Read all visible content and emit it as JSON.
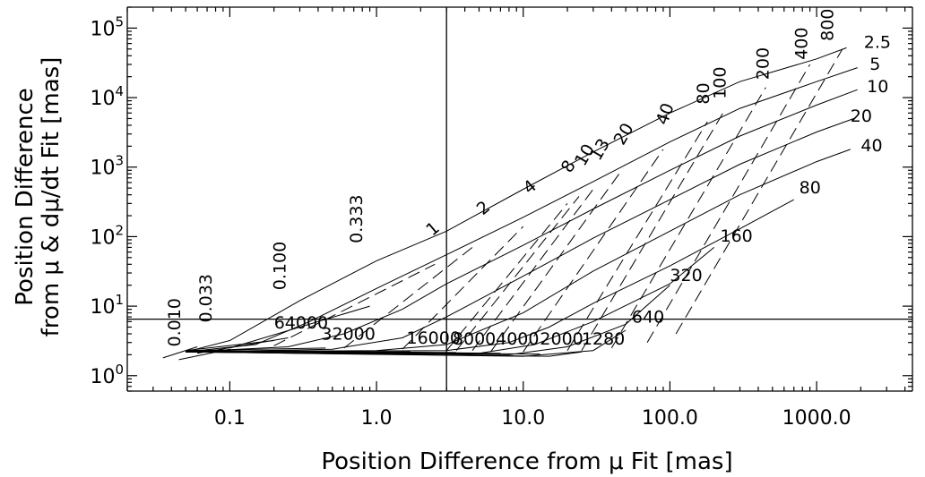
{
  "chart_data": {
    "type": "line",
    "xlabel": "Position Difference from μ Fit [mas]",
    "ylabel_lines": [
      "Position Difference",
      "from μ & dμ/dt Fit [mas]"
    ],
    "xscale": "log",
    "yscale": "log",
    "xlim": [
      0.02,
      4500
    ],
    "ylim": [
      0.6,
      200000
    ],
    "x_ticks": [
      {
        "value": 0.1,
        "label": "0.1"
      },
      {
        "value": 1,
        "label": "1.0"
      },
      {
        "value": 10,
        "label": "10.0"
      },
      {
        "value": 100,
        "label": "100.0"
      },
      {
        "value": 1000,
        "label": "1000.0"
      }
    ],
    "y_ticks": [
      {
        "value": 1,
        "label_base": "10",
        "label_exp": "0"
      },
      {
        "value": 10,
        "label_base": "10",
        "label_exp": "1"
      },
      {
        "value": 100,
        "label_base": "10",
        "label_exp": "2"
      },
      {
        "value": 1000,
        "label_base": "10",
        "label_exp": "3"
      },
      {
        "value": 10000,
        "label_base": "10",
        "label_exp": "4"
      },
      {
        "value": 100000,
        "label_base": "10",
        "label_exp": "5"
      }
    ],
    "reference_lines": {
      "vertical_x": 3,
      "horizontal_y": 6.5
    },
    "series": [
      {
        "label": "2.5",
        "points": [
          [
            0.05,
            2.2
          ],
          [
            0.1,
            3.2
          ],
          [
            0.3,
            12
          ],
          [
            1,
            45
          ],
          [
            3,
            120
          ],
          [
            10,
            480
          ],
          [
            30,
            1650
          ],
          [
            100,
            6000
          ],
          [
            300,
            17000
          ],
          [
            1000,
            36000
          ],
          [
            1600,
            52000
          ]
        ]
      },
      {
        "label": "5",
        "points": [
          [
            0.05,
            2.2
          ],
          [
            0.15,
            2.8
          ],
          [
            0.35,
            6
          ],
          [
            1,
            18
          ],
          [
            3,
            55
          ],
          [
            10,
            190
          ],
          [
            30,
            620
          ],
          [
            100,
            2300
          ],
          [
            300,
            7000
          ],
          [
            1000,
            17000
          ],
          [
            1900,
            27000
          ]
        ]
      },
      {
        "label": "10",
        "points": [
          [
            0.05,
            2.2
          ],
          [
            0.25,
            2.6
          ],
          [
            0.6,
            4
          ],
          [
            1.5,
            9
          ],
          [
            3,
            21
          ],
          [
            10,
            75
          ],
          [
            30,
            250
          ],
          [
            100,
            900
          ],
          [
            300,
            2800
          ],
          [
            1000,
            7800
          ],
          [
            1900,
            13000
          ]
        ]
      },
      {
        "label": "20",
        "points": [
          [
            0.05,
            2.2
          ],
          [
            0.5,
            2.4
          ],
          [
            1.5,
            3.5
          ],
          [
            3,
            7
          ],
          [
            10,
            27
          ],
          [
            30,
            95
          ],
          [
            100,
            340
          ],
          [
            300,
            1100
          ],
          [
            1000,
            3200
          ],
          [
            1800,
            5000
          ]
        ]
      },
      {
        "label": "40",
        "points": [
          [
            0.05,
            2.2
          ],
          [
            1,
            2.3
          ],
          [
            3,
            2.8
          ],
          [
            10,
            8
          ],
          [
            30,
            32
          ],
          [
            100,
            120
          ],
          [
            300,
            400
          ],
          [
            1000,
            1200
          ],
          [
            1700,
            1800
          ]
        ]
      },
      {
        "label": "80",
        "points": [
          [
            0.05,
            2.2
          ],
          [
            3,
            2.3
          ],
          [
            8,
            3
          ],
          [
            15,
            5
          ],
          [
            30,
            11
          ],
          [
            100,
            38
          ],
          [
            300,
            130
          ],
          [
            700,
            340
          ]
        ]
      },
      {
        "label": "160",
        "points": [
          [
            0.05,
            2.2
          ],
          [
            5,
            2.1
          ],
          [
            12,
            2.8
          ],
          [
            30,
            6
          ],
          [
            100,
            21
          ],
          [
            200,
            70
          ]
        ]
      },
      {
        "label": "320",
        "points": [
          [
            0.05,
            2.2
          ],
          [
            8,
            2
          ],
          [
            20,
            2.6
          ],
          [
            50,
            5.5
          ],
          [
            100,
            20
          ]
        ]
      },
      {
        "label": "640",
        "points": [
          [
            0.05,
            2.2
          ],
          [
            10,
            1.9
          ],
          [
            30,
            2.3
          ],
          [
            50,
            4.5
          ]
        ]
      },
      {
        "label": "1280",
        "points": [
          [
            0.05,
            2.2
          ],
          [
            15,
            1.9
          ],
          [
            25,
            2.2
          ]
        ]
      },
      {
        "label": "2000",
        "points": [
          [
            0.05,
            2.2
          ],
          [
            13,
            2.05
          ]
        ]
      },
      {
        "label": "4000",
        "points": [
          [
            0.05,
            2.3
          ],
          [
            7,
            2.1
          ]
        ]
      },
      {
        "label": "8000",
        "points": [
          [
            0.05,
            2.3
          ],
          [
            3.5,
            2.15
          ]
        ]
      },
      {
        "label": "16000",
        "points": [
          [
            0.05,
            2.3
          ],
          [
            1.7,
            2.25
          ]
        ]
      },
      {
        "label": "32000",
        "points": [
          [
            0.05,
            2.3
          ],
          [
            0.45,
            2.5
          ]
        ]
      },
      {
        "label": "64000",
        "points": [
          [
            0.05,
            2.3
          ],
          [
            0.2,
            3.2
          ]
        ]
      },
      {
        "label": "0.010",
        "points": [
          [
            0.035,
            1.8
          ],
          [
            0.06,
            2.6
          ]
        ]
      },
      {
        "label": "0.033",
        "points": [
          [
            0.045,
            1.7
          ],
          [
            0.1,
            2.4
          ]
        ]
      },
      {
        "label": "0.100",
        "points": [
          [
            0.06,
            2.1
          ],
          [
            0.25,
            3.5
          ]
        ]
      },
      {
        "label": "0.333",
        "points": [
          [
            0.1,
            2.5
          ],
          [
            0.9,
            10
          ]
        ]
      },
      {
        "label": "1",
        "points": [
          [
            0.2,
            2.7
          ],
          [
            2.5,
            40
          ]
        ]
      },
      {
        "label": "2",
        "points": [
          [
            0.6,
            2.5
          ],
          [
            4.5,
            70
          ]
        ]
      },
      {
        "label": "4",
        "points": [
          [
            1.5,
            2.4
          ],
          [
            10,
            140
          ]
        ]
      },
      {
        "label": "8",
        "points": [
          [
            3,
            2.3
          ],
          [
            20,
            300
          ]
        ]
      },
      {
        "label": "10",
        "points": [
          [
            3.5,
            2.3
          ],
          [
            24,
            380
          ]
        ]
      },
      {
        "label": "13",
        "points": [
          [
            4.5,
            2.3
          ],
          [
            30,
            480
          ]
        ]
      },
      {
        "label": "20",
        "points": [
          [
            6,
            2.2
          ],
          [
            45,
            800
          ]
        ]
      },
      {
        "label": "40",
        "points": [
          [
            10,
            2.2
          ],
          [
            90,
            1800
          ]
        ]
      },
      {
        "label": "80",
        "points": [
          [
            20,
            2.3
          ],
          [
            180,
            4500
          ]
        ]
      },
      {
        "label": "100",
        "points": [
          [
            25,
            2.3
          ],
          [
            230,
            6000
          ]
        ]
      },
      {
        "label": "200",
        "points": [
          [
            40,
            2.5
          ],
          [
            450,
            14000
          ]
        ]
      },
      {
        "label": "400",
        "points": [
          [
            70,
            3
          ],
          [
            900,
            30000
          ]
        ]
      },
      {
        "label": "800",
        "points": [
          [
            110,
            4
          ],
          [
            1500,
            50000
          ]
        ]
      }
    ],
    "annotations": [
      {
        "text": "2.5",
        "x": 2100,
        "y": 52000,
        "rotate": 0
      },
      {
        "text": "5",
        "x": 2300,
        "y": 25000,
        "rotate": 0
      },
      {
        "text": "10",
        "x": 2200,
        "y": 12000,
        "rotate": 0
      },
      {
        "text": "20",
        "x": 1700,
        "y": 4500,
        "rotate": 0
      },
      {
        "text": "40",
        "x": 2000,
        "y": 1700,
        "rotate": 0
      },
      {
        "text": "80",
        "x": 760,
        "y": 420,
        "rotate": 0
      },
      {
        "text": "160",
        "x": 220,
        "y": 85,
        "rotate": 0
      },
      {
        "text": "320",
        "x": 100,
        "y": 23,
        "rotate": 0
      },
      {
        "text": "640",
        "x": 55,
        "y": 5.8,
        "rotate": 0
      },
      {
        "text": "1280",
        "x": 25,
        "y": 2.8,
        "rotate": 0
      },
      {
        "text": "2000",
        "x": 13,
        "y": 2.8,
        "rotate": 0
      },
      {
        "text": "4000",
        "x": 6.5,
        "y": 2.8,
        "rotate": 0
      },
      {
        "text": "8000",
        "x": 3.3,
        "y": 2.8,
        "rotate": 0
      },
      {
        "text": "16000",
        "x": 1.6,
        "y": 2.9,
        "rotate": 0
      },
      {
        "text": "32000",
        "x": 0.42,
        "y": 3.3,
        "rotate": 0
      },
      {
        "text": "64000",
        "x": 0.2,
        "y": 4.8,
        "rotate": 0
      },
      {
        "text": "0.010",
        "x": 0.046,
        "y": 2.6,
        "rotate": -90
      },
      {
        "text": "0.033",
        "x": 0.075,
        "y": 5.8,
        "rotate": -90
      },
      {
        "text": "0.100",
        "x": 0.24,
        "y": 17,
        "rotate": -90
      },
      {
        "text": "0.333",
        "x": 0.8,
        "y": 80,
        "rotate": -90
      },
      {
        "text": "1",
        "x": 2.4,
        "y": 100,
        "rotate": -40
      },
      {
        "text": "2",
        "x": 5.3,
        "y": 200,
        "rotate": -40
      },
      {
        "text": "4",
        "x": 11,
        "y": 400,
        "rotate": -40
      },
      {
        "text": "8",
        "x": 21,
        "y": 800,
        "rotate": -60
      },
      {
        "text": "10",
        "x": 26,
        "y": 1000,
        "rotate": -60
      },
      {
        "text": "13",
        "x": 33,
        "y": 1200,
        "rotate": -60
      },
      {
        "text": "20",
        "x": 48,
        "y": 2000,
        "rotate": -60
      },
      {
        "text": "40",
        "x": 95,
        "y": 3900,
        "rotate": -70
      },
      {
        "text": "80",
        "x": 185,
        "y": 8000,
        "rotate": -90
      },
      {
        "text": "100",
        "x": 240,
        "y": 9500,
        "rotate": -90
      },
      {
        "text": "200",
        "x": 470,
        "y": 18000,
        "rotate": -90
      },
      {
        "text": "400",
        "x": 860,
        "y": 35000,
        "rotate": -90
      },
      {
        "text": "800",
        "x": 1300,
        "y": 65000,
        "rotate": -90
      }
    ]
  }
}
